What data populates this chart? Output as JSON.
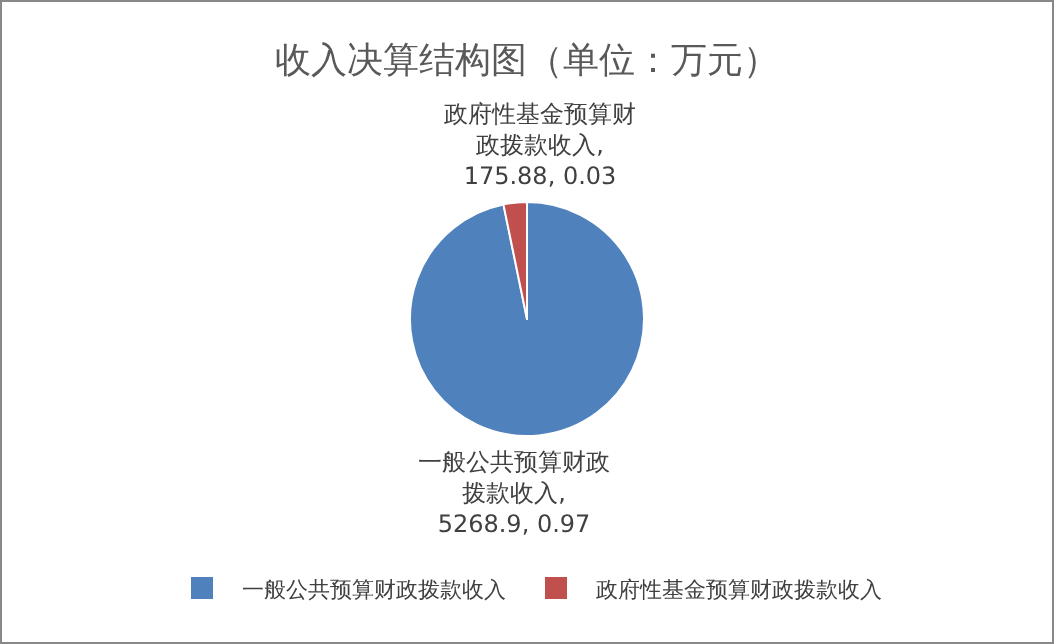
{
  "chart_data": {
    "type": "pie",
    "title": "收入决算结构图（单位：万元）",
    "categories": [
      "一般公共预算财政拨款收入",
      "政府性基金预算财政拨款收入"
    ],
    "values": [
      5268.9,
      175.88
    ],
    "value_labels": [
      "一般公共预算财政拨款收入, 5268.9, 0.97",
      "政府性基金预算财政拨款收入, 175.88, 0.03"
    ],
    "colors": [
      "#4f81bd",
      "#c0504d"
    ],
    "legend": "bottom"
  }
}
